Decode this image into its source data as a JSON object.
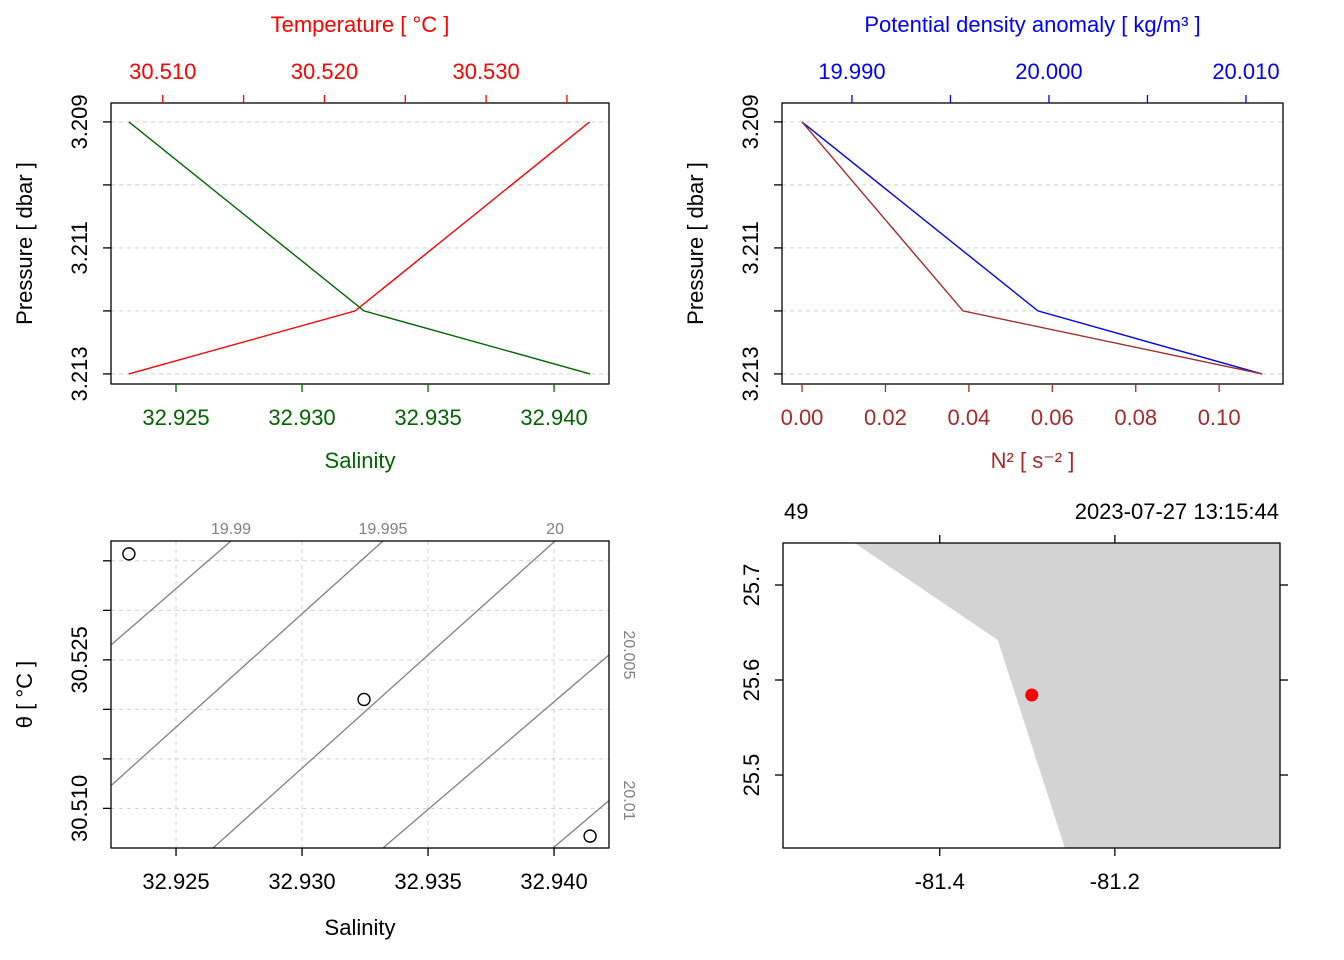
{
  "chart_data": [
    {
      "type": "profile",
      "ylabel": "Pressure [ dbar ]",
      "y": [
        3.209,
        3.212,
        3.213
      ],
      "ylim": [
        3.21316,
        3.2087
      ],
      "yticks": [
        3.209,
        3.211,
        3.213
      ],
      "yticks_minor": [
        3.21,
        3.212
      ],
      "grid": true,
      "xlabel": "Salinity",
      "xcolor": "#006400",
      "xlim": [
        32.92242,
        32.94218
      ],
      "xticks": [
        32.925,
        {
          "value": 32.93,
          "label": "32.930"
        },
        32.935,
        {
          "value": 32.94,
          "label": "32.940"
        }
      ],
      "x2label": "Temperature [ °C ]",
      "x2color": "#ff0000",
      "x2lim": [
        30.5068,
        30.5376
      ],
      "x2ticks": [
        {
          "value": 30.51,
          "label": "30.510"
        },
        {
          "value": 30.52,
          "label": "30.520"
        },
        {
          "value": 30.53,
          "label": "30.530"
        }
      ],
      "x2ticks_minor": [
        30.515,
        30.525,
        30.535
      ],
      "series": [
        {
          "axis": "x2",
          "color": "#ff0000",
          "values": [
            30.5364,
            30.5219,
            30.5079
          ]
        },
        {
          "axis": "x",
          "color": "#006400",
          "values": [
            32.92313,
            32.93246,
            32.94143
          ]
        }
      ]
    },
    {
      "type": "profile",
      "ylabel": "Pressure [ dbar ]",
      "y": [
        3.209,
        3.212,
        3.213
      ],
      "ylim": [
        3.21316,
        3.2087
      ],
      "yticks": [
        3.209,
        3.211,
        3.213
      ],
      "yticks_minor": [
        3.21,
        3.212
      ],
      "grid": true,
      "xlabel": "N² [ s⁻² ]",
      "xcolor": "#a52a2a",
      "xlim": [
        -0.0048,
        0.1153
      ],
      "xticks": [
        {
          "value": 0,
          "label": "0.00"
        },
        0.02,
        0.04,
        0.06,
        0.08,
        {
          "value": 0.1,
          "label": "0.10"
        }
      ],
      "x2label": "Potential density anomaly [ kg/m³ ]",
      "x2color": "#0000ff",
      "x2lim": [
        19.98645,
        20.01188
      ],
      "x2ticks": [
        {
          "value": 19.99,
          "label": "19.990"
        },
        {
          "value": 20,
          "label": "20.000"
        },
        {
          "value": 20.01,
          "label": "20.010"
        }
      ],
      "x2ticks_minor": [
        19.995,
        20.005
      ],
      "series": [
        {
          "axis": "x2",
          "color": "#0000ff",
          "values": [
            19.98746,
            19.99944,
            20.01081
          ]
        },
        {
          "axis": "x",
          "color": "#a52a2a",
          "values": [
            0,
            0.0386,
            0.1103
          ]
        }
      ]
    },
    {
      "type": "ts",
      "xlabel": "Salinity",
      "ylabel": "θ [ °C ]",
      "xlim": [
        32.92242,
        32.94218
      ],
      "xticks": [
        32.925,
        {
          "value": 32.93,
          "label": "32.930"
        },
        32.935,
        {
          "value": 32.94,
          "label": "32.940"
        }
      ],
      "ylim": [
        30.506,
        30.537
      ],
      "yticks": [
        {
          "value": 30.51,
          "label": "30.510"
        },
        30.525
      ],
      "yticks_minor": [
        30.515,
        30.52,
        30.53,
        30.535
      ],
      "grid": true,
      "point_color": "#000000",
      "isopycnal_color": "#808080",
      "salinity": [
        32.92313,
        32.93246,
        32.94143
      ],
      "theta": [
        30.5357,
        30.521,
        30.5072
      ],
      "isopycnals": [
        {
          "level": 19.99,
          "s": [
            32.92242,
            32.92718
          ],
          "theta": [
            30.5265,
            30.537
          ]
        },
        {
          "level": 19.995,
          "s": [
            32.92242,
            32.93321
          ],
          "theta": [
            30.5123,
            30.537
          ]
        },
        {
          "level": 20,
          "s": [
            32.92647,
            32.94004
          ],
          "theta": [
            30.506,
            30.537
          ]
        },
        {
          "level": 20.005,
          "s": [
            32.93321,
            32.94218
          ],
          "theta": [
            30.506,
            30.5255
          ]
        },
        {
          "level": 20.01,
          "s": [
            32.93996,
            32.94218
          ],
          "theta": [
            30.506,
            30.5108
          ]
        }
      ]
    },
    {
      "type": "map",
      "station": "49",
      "time": "2023-07-27 13:15:44",
      "xlim": [
        -81.579,
        -81.0114
      ],
      "xticks": [
        -81.4,
        -81.2
      ],
      "ylim": [
        25.4232,
        25.7442
      ],
      "yticks": [
        25.5,
        25.6,
        25.7
      ],
      "land_color": "#d3d3d3",
      "point_color": "#ff0000",
      "land": {
        "lon": [
          -81.4971,
          -81.3337,
          -81.2571,
          -81.0114,
          -81.0114
        ],
        "lat": [
          25.7442,
          25.6421,
          25.4232,
          25.4232,
          25.7442
        ]
      },
      "lon": -81.2949,
      "lat": 25.5842
    }
  ]
}
